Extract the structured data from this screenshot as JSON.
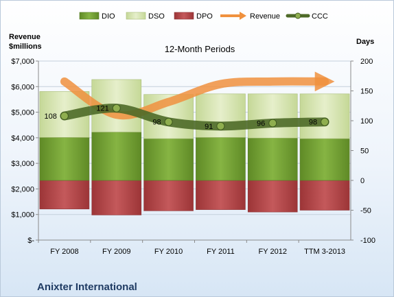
{
  "chart_data": {
    "type": "bar",
    "title": "12-Month Periods",
    "footer": "Anixter International",
    "y_left_label_line1": "Revenue",
    "y_left_label_line2": "$millions",
    "y_right_label": "Days",
    "categories": [
      "FY 2008",
      "FY 2009",
      "FY 2010",
      "FY 2011",
      "FY 2012",
      "TTM 3-2013"
    ],
    "y_left": {
      "ticks": [
        0,
        1000,
        2000,
        3000,
        4000,
        5000,
        6000,
        7000
      ],
      "tick_labels": [
        "$-",
        "$1,000",
        "$2,000",
        "$3,000",
        "$4,000",
        "$5,000",
        "$6,000",
        "$7,000"
      ],
      "range": [
        0,
        7000
      ]
    },
    "y_right": {
      "ticks": [
        -100,
        -50,
        0,
        50,
        100,
        150,
        200
      ],
      "tick_labels": [
        "-100",
        "-50",
        "0",
        "50",
        "100",
        "150",
        "200"
      ],
      "range": [
        -100,
        200
      ]
    },
    "legend_position": "top",
    "series": [
      {
        "name": "DIO",
        "kind": "stacked-bar",
        "axis": "right",
        "color": "#77a33a",
        "values": [
          72,
          81,
          70,
          72,
          71,
          70
        ]
      },
      {
        "name": "DSO",
        "kind": "stacked-bar",
        "axis": "right",
        "color": "#d7e4b0",
        "values": [
          77,
          88,
          74,
          73,
          74,
          75
        ]
      },
      {
        "name": "DPO",
        "kind": "stacked-bar-negative",
        "axis": "right",
        "color": "#b5484a",
        "values": [
          -48,
          -58,
          -51,
          -49,
          -53,
          -50
        ]
      },
      {
        "name": "Revenue",
        "kind": "line",
        "axis": "left",
        "color": "#f0913e",
        "values": [
          6200,
          4900,
          5400,
          6100,
          6200,
          6200
        ]
      },
      {
        "name": "CCC",
        "kind": "line",
        "axis": "right",
        "color": "#4e6a28",
        "values": [
          108,
          121,
          98,
          91,
          96,
          98
        ],
        "labels": [
          "108",
          "121",
          "98",
          "91",
          "96",
          "98"
        ]
      }
    ]
  }
}
